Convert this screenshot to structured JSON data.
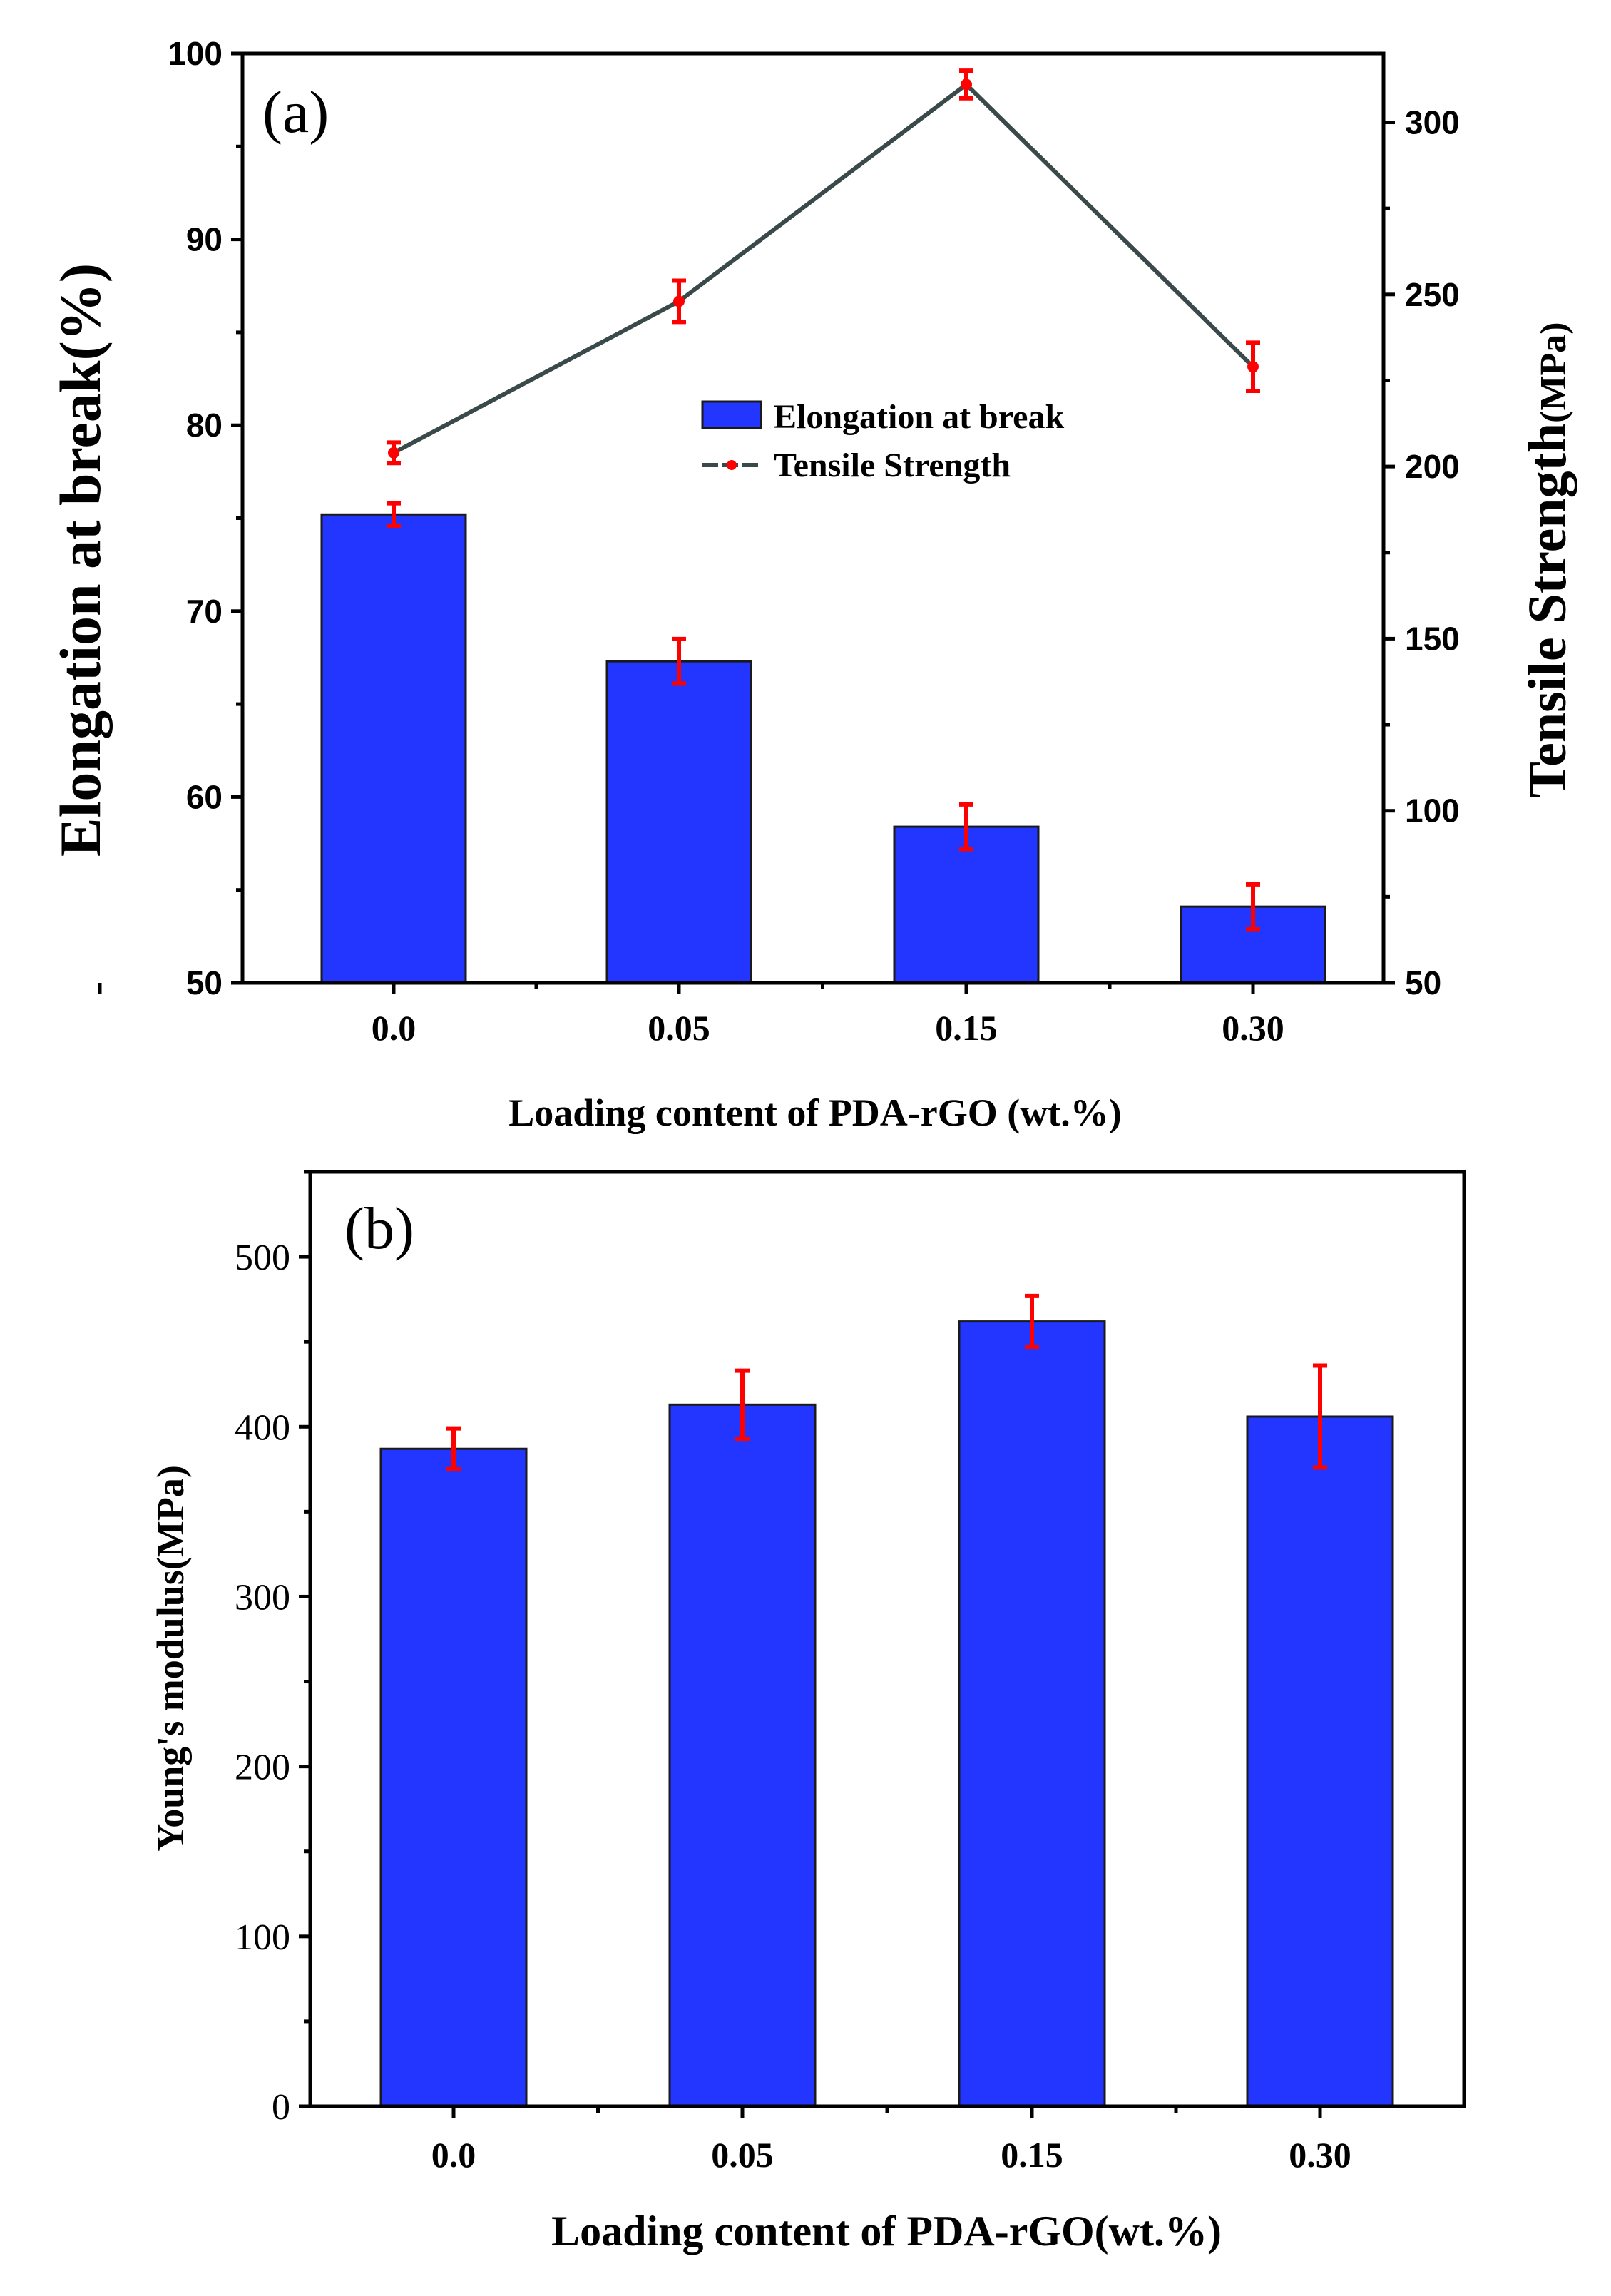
{
  "colors": {
    "bar": "#2236ff",
    "error_bar": "#ff0000",
    "line": "#3a4a4a",
    "marker": "#ff0000"
  },
  "chart_data": [
    {
      "panel_label": "(a)",
      "type": "bar+line",
      "categories": [
        "0.0",
        "0.05",
        "0.15",
        "0.30"
      ],
      "xlabel": "Loading content of PDA-rGO (wt.%)",
      "series": [
        {
          "name": "Elongation at break",
          "type": "bar",
          "axis": "left",
          "values": [
            75.2,
            67.3,
            58.4,
            54.1
          ],
          "errors": [
            0.6,
            1.2,
            1.2,
            1.2
          ]
        },
        {
          "name": "Tensile Strength",
          "type": "line",
          "axis": "right",
          "values": [
            204,
            248,
            311,
            229
          ],
          "errors": [
            3,
            6,
            4,
            7
          ]
        }
      ],
      "ylabel_left": "Elongation at break(%)",
      "ylim_left": [
        50,
        100
      ],
      "yticks_left": [
        "50",
        "60",
        "70",
        "80",
        "90",
        "100"
      ],
      "ylabel_right_main": "Tensile Strength",
      "ylabel_right_unit": "(MPa)",
      "ylim_right": [
        50,
        320
      ],
      "yticks_right": [
        "50",
        "100",
        "150",
        "200",
        "250",
        "300"
      ],
      "legend": [
        "Elongation at break",
        "Tensile Strength"
      ]
    },
    {
      "panel_label": "(b)",
      "type": "bar",
      "categories": [
        "0.0",
        "0.05",
        "0.15",
        "0.30"
      ],
      "xlabel": "Loading content of PDA-rGO(wt.%)",
      "ylabel": "Young's modulus(MPa)",
      "ylim": [
        0,
        550
      ],
      "yticks": [
        "0",
        "100",
        "200",
        "300",
        "400",
        "500"
      ],
      "values": [
        387,
        413,
        462,
        406
      ],
      "errors": [
        12,
        20,
        15,
        30
      ]
    }
  ]
}
